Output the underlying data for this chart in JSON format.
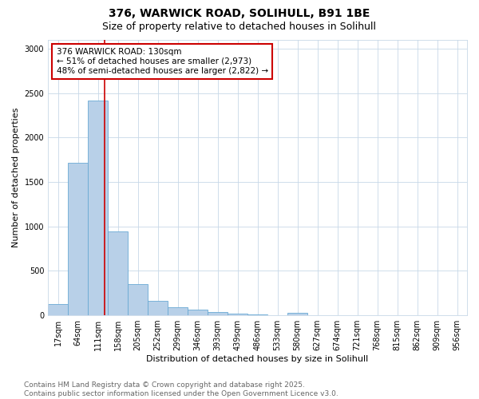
{
  "title_line1": "376, WARWICK ROAD, SOLIHULL, B91 1BE",
  "title_line2": "Size of property relative to detached houses in Solihull",
  "xlabel": "Distribution of detached houses by size in Solihull",
  "ylabel": "Number of detached properties",
  "bin_labels": [
    "17sqm",
    "64sqm",
    "111sqm",
    "158sqm",
    "205sqm",
    "252sqm",
    "299sqm",
    "346sqm",
    "393sqm",
    "439sqm",
    "486sqm",
    "533sqm",
    "580sqm",
    "627sqm",
    "674sqm",
    "721sqm",
    "768sqm",
    "815sqm",
    "862sqm",
    "909sqm",
    "956sqm"
  ],
  "bin_values": [
    130,
    1720,
    2420,
    940,
    350,
    160,
    90,
    60,
    40,
    20,
    10,
    5,
    30,
    2,
    2,
    1,
    1,
    1,
    0,
    0,
    0
  ],
  "bar_color": "#b8d0e8",
  "bar_edge_color": "#6aaad4",
  "vline_x_index": 2.35,
  "vline_color": "#cc0000",
  "ylim": [
    0,
    3100
  ],
  "yticks": [
    0,
    500,
    1000,
    1500,
    2000,
    2500,
    3000
  ],
  "annotation_text": "376 WARWICK ROAD: 130sqm\n← 51% of detached houses are smaller (2,973)\n48% of semi-detached houses are larger (2,822) →",
  "annotation_box_color": "#ffffff",
  "annotation_edge_color": "#cc0000",
  "footnote_line1": "Contains HM Land Registry data © Crown copyright and database right 2025.",
  "footnote_line2": "Contains public sector information licensed under the Open Government Licence v3.0.",
  "background_color": "#ffffff",
  "grid_color": "#c8d8e8",
  "title_fontsize": 10,
  "subtitle_fontsize": 9,
  "axis_label_fontsize": 8,
  "tick_fontsize": 7,
  "annotation_fontsize": 7.5,
  "footnote_fontsize": 6.5
}
